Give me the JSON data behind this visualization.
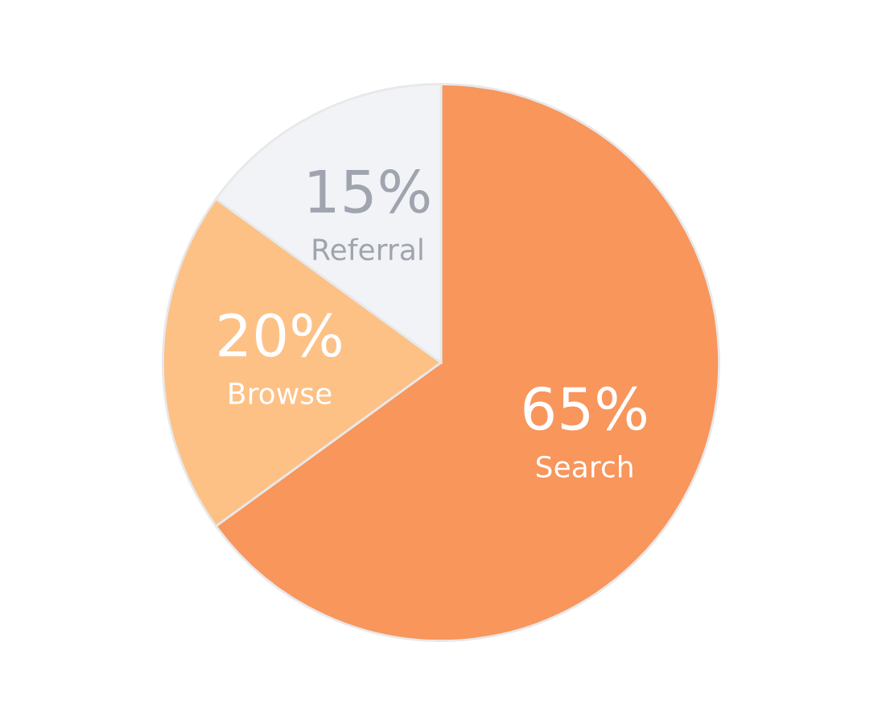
{
  "chart_data": {
    "type": "pie",
    "categories": [
      "Search",
      "Browse",
      "Referral"
    ],
    "values": [
      65,
      20,
      15
    ],
    "colors": [
      "#f8965c",
      "#fdc186",
      "#f1f3f6"
    ],
    "value_labels": [
      "65%",
      "20%",
      "15%"
    ]
  }
}
